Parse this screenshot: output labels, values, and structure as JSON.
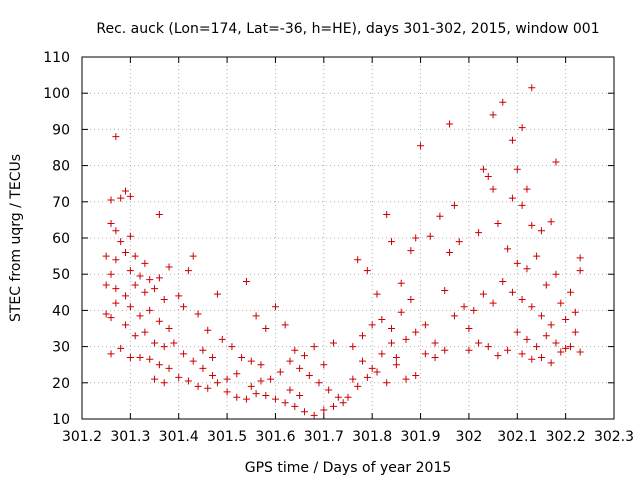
{
  "chart_data": {
    "type": "scatter",
    "title": "Rec. auck (Lon=174, Lat=-36, h=HE), days 301-302, 2015, window 001",
    "xlabel": "GPS time / Days of year 2015",
    "ylabel": "STEC from uqrg / TECUs",
    "xlim": [
      301.2,
      302.3
    ],
    "ylim": [
      10,
      110
    ],
    "xticks": [
      "301.2",
      "301.3",
      "301.4",
      "301.5",
      "301.6",
      "301.7",
      "301.8",
      "301.9",
      "302",
      "302.1",
      "302.2",
      "302.3"
    ],
    "yticks": [
      "10",
      "20",
      "30",
      "40",
      "50",
      "60",
      "70",
      "80",
      "90",
      "100",
      "110"
    ],
    "grid": true,
    "marker": "plus",
    "color": "#cc0000",
    "points": [
      [
        301.27,
        88
      ],
      [
        301.29,
        73
      ],
      [
        301.3,
        71.5
      ],
      [
        301.26,
        70.5
      ],
      [
        301.28,
        71
      ],
      [
        301.36,
        66.5
      ],
      [
        301.26,
        64
      ],
      [
        301.27,
        62
      ],
      [
        301.28,
        59
      ],
      [
        301.3,
        60.5
      ],
      [
        301.27,
        54
      ],
      [
        301.29,
        56
      ],
      [
        301.31,
        55
      ],
      [
        301.33,
        53
      ],
      [
        301.26,
        50
      ],
      [
        301.3,
        51
      ],
      [
        301.32,
        49.5
      ],
      [
        301.34,
        48.5
      ],
      [
        301.36,
        49
      ],
      [
        301.38,
        52
      ],
      [
        301.27,
        46
      ],
      [
        301.29,
        44
      ],
      [
        301.31,
        47
      ],
      [
        301.33,
        45
      ],
      [
        301.35,
        46
      ],
      [
        301.37,
        43
      ],
      [
        301.27,
        42
      ],
      [
        301.3,
        41
      ],
      [
        301.32,
        38.5
      ],
      [
        301.34,
        40
      ],
      [
        301.36,
        37
      ],
      [
        301.38,
        35
      ],
      [
        301.26,
        38
      ],
      [
        301.29,
        36
      ],
      [
        301.31,
        33
      ],
      [
        301.33,
        34
      ],
      [
        301.35,
        31
      ],
      [
        301.37,
        30
      ],
      [
        301.26,
        28
      ],
      [
        301.28,
        29.5
      ],
      [
        301.3,
        27
      ],
      [
        301.32,
        27
      ],
      [
        301.34,
        26.5
      ],
      [
        301.36,
        25
      ],
      [
        301.38,
        24
      ],
      [
        301.4,
        44
      ],
      [
        301.42,
        51
      ],
      [
        301.43,
        55
      ],
      [
        301.41,
        41
      ],
      [
        301.44,
        39
      ],
      [
        301.46,
        34.5
      ],
      [
        301.48,
        44.5
      ],
      [
        301.39,
        31
      ],
      [
        301.41,
        28
      ],
      [
        301.43,
        26
      ],
      [
        301.45,
        24
      ],
      [
        301.47,
        22
      ],
      [
        301.4,
        21.5
      ],
      [
        301.42,
        20.5
      ],
      [
        301.44,
        19
      ],
      [
        301.46,
        18.5
      ],
      [
        301.48,
        20
      ],
      [
        301.5,
        21
      ],
      [
        301.52,
        22.5
      ],
      [
        301.49,
        32
      ],
      [
        301.51,
        30
      ],
      [
        301.53,
        27
      ],
      [
        301.55,
        26
      ],
      [
        301.57,
        25
      ],
      [
        301.54,
        48
      ],
      [
        301.56,
        38.5
      ],
      [
        301.58,
        35
      ],
      [
        301.6,
        41
      ],
      [
        301.62,
        36
      ],
      [
        301.5,
        17.5
      ],
      [
        301.52,
        16
      ],
      [
        301.54,
        15.5
      ],
      [
        301.56,
        17
      ],
      [
        301.58,
        16.5
      ],
      [
        301.6,
        15.5
      ],
      [
        301.62,
        14.5
      ],
      [
        301.64,
        13.5
      ],
      [
        301.66,
        12
      ],
      [
        301.68,
        11
      ],
      [
        301.7,
        12.5
      ],
      [
        301.72,
        13.5
      ],
      [
        301.74,
        14.5
      ],
      [
        301.59,
        21
      ],
      [
        301.61,
        23
      ],
      [
        301.63,
        26
      ],
      [
        301.65,
        24
      ],
      [
        301.67,
        22
      ],
      [
        301.69,
        20
      ],
      [
        301.71,
        18
      ],
      [
        301.73,
        16
      ],
      [
        301.64,
        29
      ],
      [
        301.66,
        27.5
      ],
      [
        301.68,
        30
      ],
      [
        301.7,
        25
      ],
      [
        301.72,
        31
      ],
      [
        301.76,
        21
      ],
      [
        301.78,
        26
      ],
      [
        301.8,
        24
      ],
      [
        301.82,
        28
      ],
      [
        301.84,
        31
      ],
      [
        301.77,
        54
      ],
      [
        301.79,
        51
      ],
      [
        301.81,
        44.5
      ],
      [
        301.83,
        66.5
      ],
      [
        301.84,
        59
      ],
      [
        301.76,
        30
      ],
      [
        301.78,
        33
      ],
      [
        301.8,
        36
      ],
      [
        301.82,
        37.5
      ],
      [
        301.84,
        35
      ],
      [
        301.86,
        39.5
      ],
      [
        301.88,
        43
      ],
      [
        301.86,
        47.5
      ],
      [
        301.88,
        56.5
      ],
      [
        301.89,
        60
      ],
      [
        301.9,
        85.5
      ],
      [
        301.92,
        60.5
      ],
      [
        301.87,
        32
      ],
      [
        301.89,
        34
      ],
      [
        301.91,
        36
      ],
      [
        301.93,
        31
      ],
      [
        301.85,
        25
      ],
      [
        301.87,
        21
      ],
      [
        301.89,
        22
      ],
      [
        301.91,
        28
      ],
      [
        301.93,
        27
      ],
      [
        301.95,
        29
      ],
      [
        301.96,
        56
      ],
      [
        301.97,
        69
      ],
      [
        301.94,
        66
      ],
      [
        301.96,
        91.5
      ],
      [
        301.98,
        59
      ],
      [
        301.95,
        45.5
      ],
      [
        301.97,
        38.5
      ],
      [
        301.99,
        41
      ],
      [
        302.0,
        35
      ],
      [
        302.02,
        61.5
      ],
      [
        302.03,
        79
      ],
      [
        302.04,
        77
      ],
      [
        302.05,
        73.5
      ],
      [
        302.06,
        64
      ],
      [
        302.01,
        40
      ],
      [
        302.03,
        44.5
      ],
      [
        302.05,
        42
      ],
      [
        302.07,
        48
      ],
      [
        302.0,
        29
      ],
      [
        302.02,
        31
      ],
      [
        302.04,
        30
      ],
      [
        302.06,
        27.5
      ],
      [
        302.08,
        29
      ],
      [
        302.05,
        94
      ],
      [
        302.07,
        97.5
      ],
      [
        302.09,
        87
      ],
      [
        302.11,
        90.5
      ],
      [
        302.1,
        79
      ],
      [
        302.12,
        73.5
      ],
      [
        302.13,
        101.5
      ],
      [
        302.09,
        71
      ],
      [
        302.11,
        69
      ],
      [
        302.13,
        63.5
      ],
      [
        302.15,
        62
      ],
      [
        302.17,
        64.5
      ],
      [
        302.18,
        81
      ],
      [
        302.08,
        57
      ],
      [
        302.1,
        53
      ],
      [
        302.12,
        51.5
      ],
      [
        302.14,
        55
      ],
      [
        302.16,
        47
      ],
      [
        302.18,
        50
      ],
      [
        302.09,
        45
      ],
      [
        302.11,
        43
      ],
      [
        302.13,
        41
      ],
      [
        302.15,
        38.5
      ],
      [
        302.17,
        36
      ],
      [
        302.19,
        42
      ],
      [
        302.21,
        45
      ],
      [
        302.2,
        37.5
      ],
      [
        302.22,
        39.5
      ],
      [
        302.23,
        54.5
      ],
      [
        302.23,
        51
      ],
      [
        302.1,
        34
      ],
      [
        302.12,
        32
      ],
      [
        302.14,
        30
      ],
      [
        302.16,
        33
      ],
      [
        302.18,
        31
      ],
      [
        302.2,
        29.5
      ],
      [
        302.22,
        34
      ],
      [
        302.11,
        28
      ],
      [
        302.13,
        26.5
      ],
      [
        302.15,
        27
      ],
      [
        302.17,
        25.5
      ],
      [
        302.19,
        28.5
      ],
      [
        302.21,
        30
      ],
      [
        302.23,
        28.5
      ],
      [
        301.25,
        47
      ],
      [
        301.25,
        39
      ],
      [
        301.25,
        55
      ],
      [
        301.35,
        21
      ],
      [
        301.37,
        20
      ],
      [
        301.45,
        29
      ],
      [
        301.47,
        27
      ],
      [
        301.55,
        19
      ],
      [
        301.57,
        20.5
      ],
      [
        301.63,
        18
      ],
      [
        301.65,
        16.5
      ],
      [
        301.75,
        16
      ],
      [
        301.77,
        19
      ],
      [
        301.79,
        21.5
      ],
      [
        301.81,
        23
      ],
      [
        301.83,
        20
      ],
      [
        301.85,
        27
      ]
    ]
  }
}
